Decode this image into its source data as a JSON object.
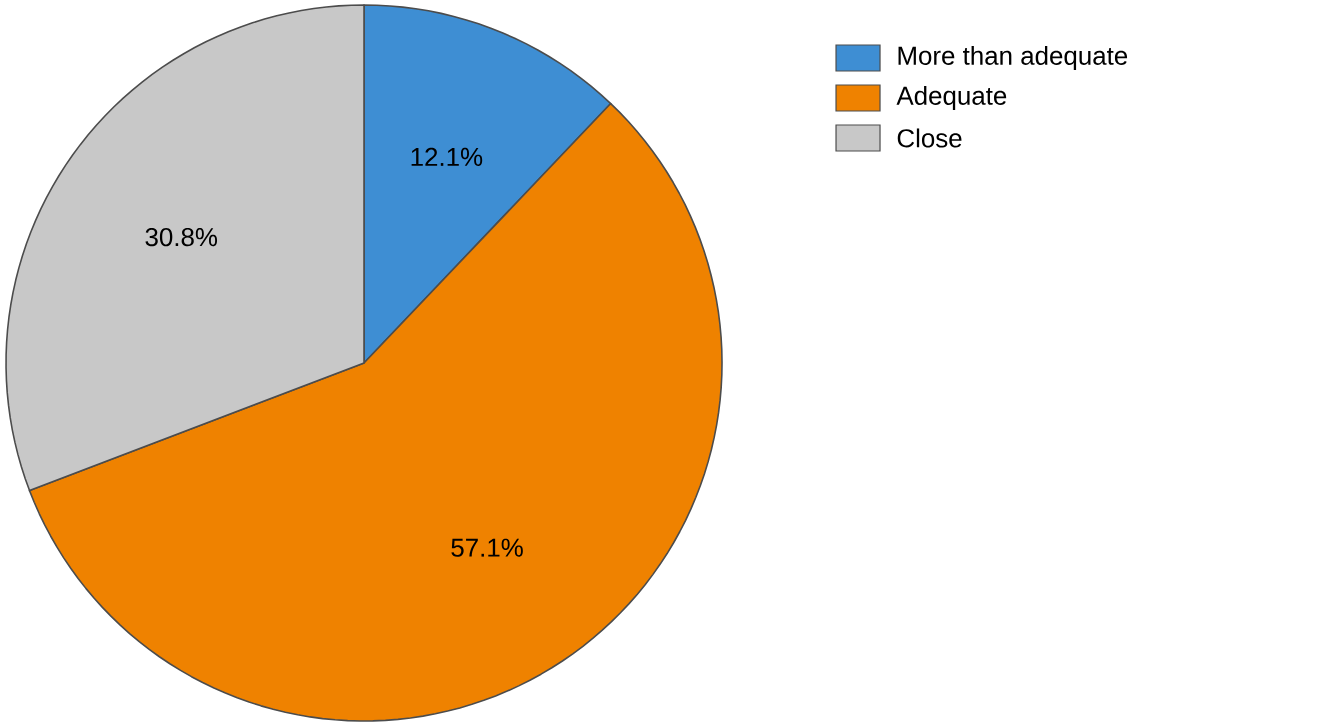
{
  "chart_data": {
    "type": "pie",
    "categories": [
      "More than adequate",
      "Adequate",
      "Close"
    ],
    "values": [
      12.1,
      57.1,
      30.8
    ],
    "colors": [
      "#3e8ed3",
      "#ef8200",
      "#c8c8c8"
    ],
    "value_labels": [
      "12.1%",
      "57.1%",
      "30.8%"
    ],
    "legend": "right"
  }
}
